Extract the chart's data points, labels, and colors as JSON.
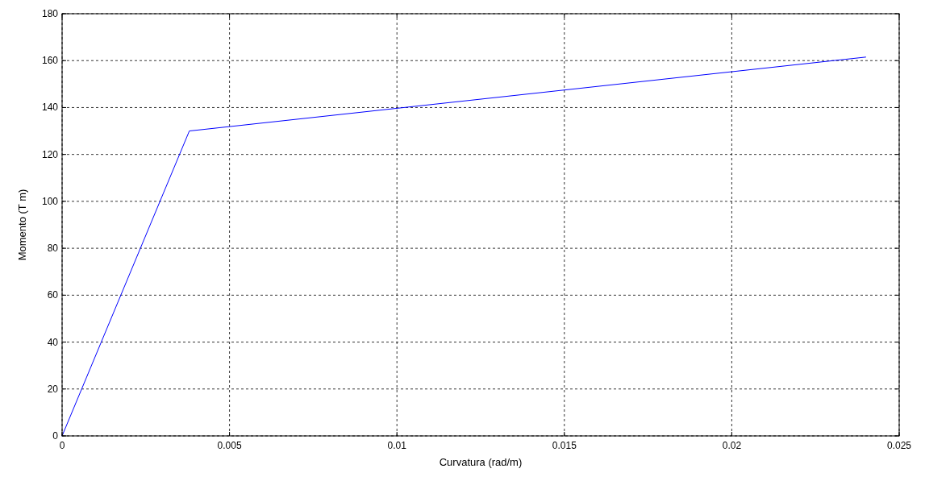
{
  "chart_data": {
    "type": "line",
    "xlabel": "Curvatura (rad/m)",
    "ylabel": "Momento (T m)",
    "x": [
      0,
      0.0038,
      0.024
    ],
    "series": [
      {
        "color": "#0000ff",
        "values": [
          0,
          130,
          161.5
        ]
      }
    ],
    "xlim": [
      0,
      0.025
    ],
    "xticks": [
      0,
      0.005,
      0.01,
      0.015,
      0.02,
      0.025
    ],
    "ylim": [
      0,
      180
    ],
    "yticks": [
      0,
      20,
      40,
      60,
      80,
      100,
      120,
      140,
      160,
      180
    ],
    "grid": true,
    "marker": "none",
    "line_style": "solid"
  }
}
